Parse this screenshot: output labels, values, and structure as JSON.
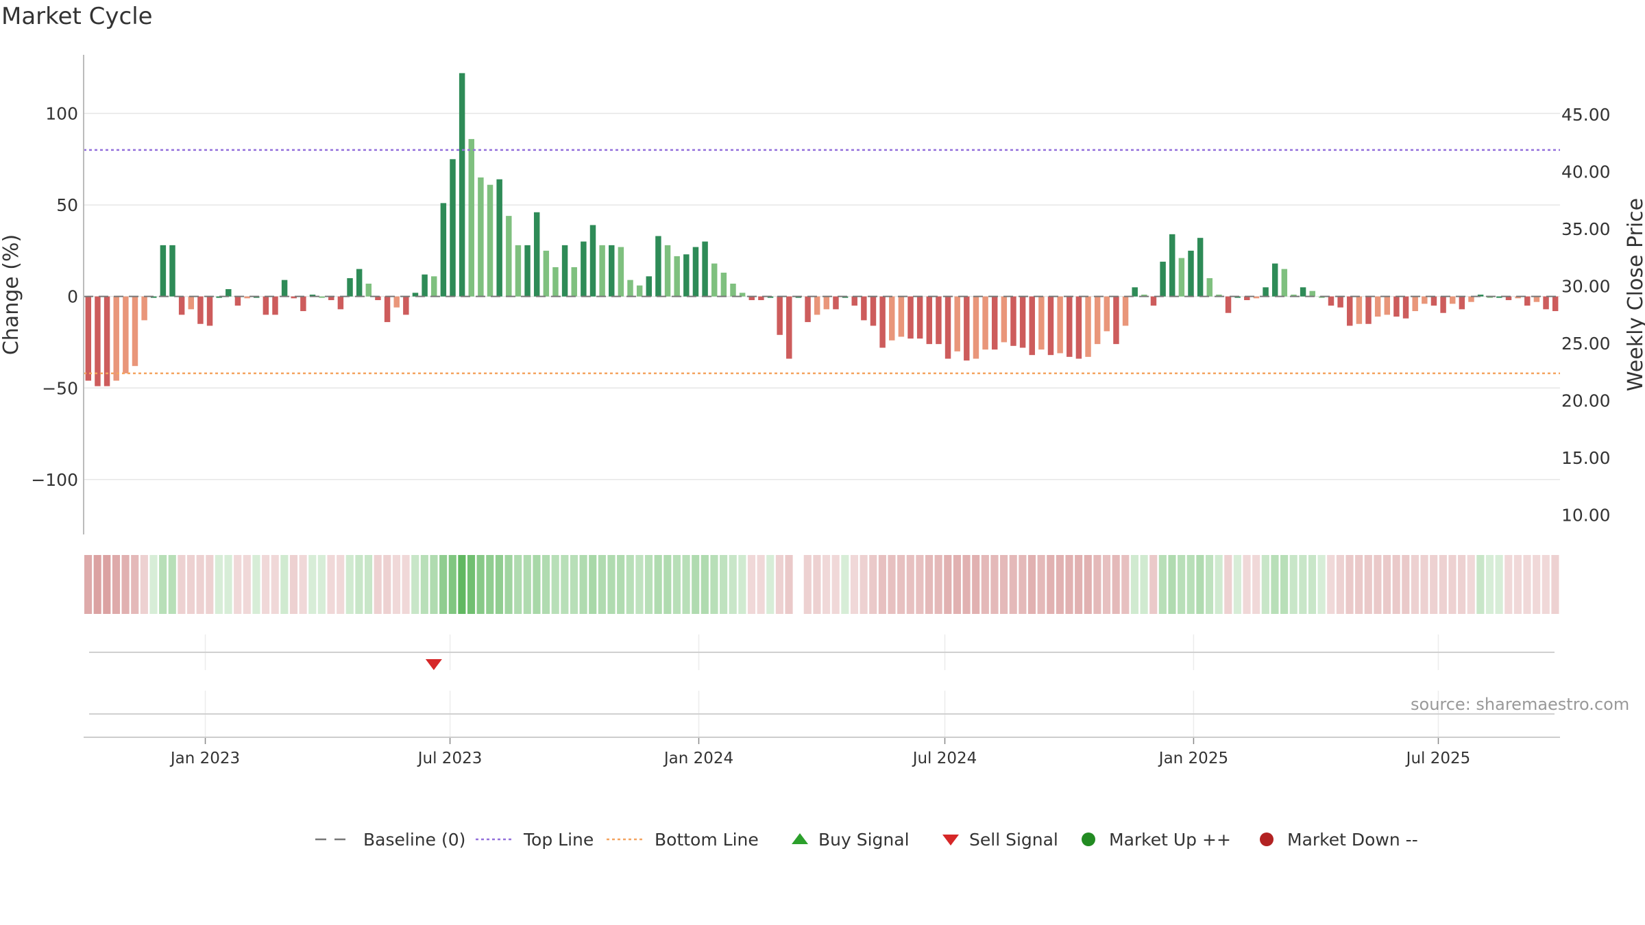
{
  "title": "Market Cycle",
  "source": "source: sharemaestro.com",
  "colors": {
    "strong_up": "#2e8b57",
    "weak_up": "#7fc07f",
    "strong_down": "#cd5c5c",
    "weak_down": "#e9967a",
    "top_line": "#9370db",
    "bottom_line": "#f4a460",
    "buy": "#2ca02c",
    "sell": "#d62728",
    "market_up": "#228b22",
    "market_down": "#b22222"
  },
  "chart_data": {
    "type": "bar",
    "title": "Market Cycle",
    "ylabel": "Change (%)",
    "ylabel_right": "Weekly Close Price",
    "ylim": [
      -130,
      132
    ],
    "y_ticks": [
      100,
      50,
      0,
      -50,
      -100
    ],
    "y_tick_labels": [
      "100",
      "50",
      "0",
      "−50",
      "−100"
    ],
    "right_ylim": [
      8.3,
      50.2
    ],
    "right_ticks": [
      45,
      40,
      35,
      30,
      25,
      20,
      15,
      10
    ],
    "right_tick_labels": [
      "45.00",
      "40.00",
      "35.00",
      "30.00",
      "25.00",
      "20.00",
      "15.00",
      "10.00"
    ],
    "x_ticks": [
      "2023-01-01",
      "2023-07-01",
      "2024-01-01",
      "2024-07-01",
      "2025-01-01",
      "2025-07-01"
    ],
    "x_tick_labels": [
      "Jan 2023",
      "Jul 2023",
      "Jan 2024",
      "Jul 2024",
      "Jan 2025",
      "Jul 2025"
    ],
    "x_range": [
      "2022-10-03",
      "2025-09-29"
    ],
    "top_line": 80,
    "bottom_line": -42,
    "baseline": 0,
    "grid": true,
    "legend_position": "bottom",
    "series": [
      {
        "values": [
          -46,
          -49,
          -49,
          -46,
          -42,
          -38,
          -13,
          0,
          28,
          28,
          -10,
          -7,
          -15,
          -16,
          0,
          4,
          -5,
          -1,
          0,
          -10,
          -10,
          9,
          -1,
          -8,
          1,
          0,
          -2,
          -7,
          10,
          15,
          7,
          -2,
          -14,
          -6,
          -10,
          2,
          12,
          11,
          51,
          75,
          122,
          86,
          65,
          61,
          64,
          44,
          28,
          28,
          46,
          25,
          16,
          28,
          16,
          30,
          39,
          28,
          28,
          27,
          9,
          6,
          11,
          33,
          28,
          22,
          23,
          27,
          30,
          18,
          13,
          7,
          2,
          -2,
          -2,
          0,
          -21,
          -34,
          0,
          -14,
          -10,
          -7,
          -7,
          0,
          -5,
          -13,
          -16,
          -28,
          -24,
          -22,
          -23,
          -23,
          -26,
          -26,
          -34,
          -30,
          -35,
          -34,
          -29,
          -29,
          -25,
          -27,
          -28,
          -32,
          -29,
          -32,
          -31,
          -33,
          -34,
          -33,
          -26,
          -19,
          -26,
          -16,
          5,
          1,
          -5,
          19,
          34,
          21,
          25,
          32,
          10,
          1,
          -9,
          0,
          -2,
          -1,
          5,
          18,
          15,
          1,
          5,
          3,
          0,
          -5,
          -6,
          -16,
          -15,
          -15,
          -11,
          -10,
          -11,
          -12,
          -8,
          -4,
          -5,
          -9,
          -4,
          -7,
          -3,
          1,
          0,
          0,
          -2,
          -1,
          -5,
          -3,
          -7,
          -8
        ],
        "shading_intensity": [
          0.55,
          0.6,
          0.6,
          0.55,
          0.5,
          0.45,
          0.3,
          0.25,
          0.45,
          0.45,
          0.3,
          0.3,
          0.3,
          0.3,
          0.25,
          0.25,
          0.25,
          0.25,
          0.25,
          0.25,
          0.25,
          0.3,
          0.3,
          0.25,
          0.25,
          0.25,
          0.25,
          0.25,
          0.3,
          0.35,
          0.35,
          0.3,
          0.3,
          0.25,
          0.25,
          0.35,
          0.45,
          0.5,
          0.7,
          0.8,
          1.0,
          0.9,
          0.75,
          0.7,
          0.7,
          0.6,
          0.5,
          0.5,
          0.55,
          0.5,
          0.45,
          0.45,
          0.45,
          0.5,
          0.55,
          0.5,
          0.5,
          0.5,
          0.45,
          0.4,
          0.45,
          0.5,
          0.5,
          0.45,
          0.45,
          0.5,
          0.5,
          0.45,
          0.4,
          0.35,
          0.3,
          0.25,
          0.25,
          0.25,
          0.3,
          0.35,
          0.0,
          0.3,
          0.3,
          0.25,
          0.25,
          0.25,
          0.25,
          0.3,
          0.35,
          0.4,
          0.4,
          0.4,
          0.4,
          0.4,
          0.45,
          0.45,
          0.5,
          0.5,
          0.5,
          0.5,
          0.45,
          0.45,
          0.45,
          0.45,
          0.45,
          0.5,
          0.45,
          0.5,
          0.5,
          0.5,
          0.5,
          0.5,
          0.45,
          0.4,
          0.45,
          0.4,
          0.3,
          0.3,
          0.35,
          0.45,
          0.5,
          0.45,
          0.45,
          0.5,
          0.4,
          0.3,
          0.3,
          0.25,
          0.25,
          0.25,
          0.35,
          0.45,
          0.45,
          0.35,
          0.35,
          0.35,
          0.25,
          0.25,
          0.3,
          0.35,
          0.35,
          0.35,
          0.35,
          0.35,
          0.35,
          0.35,
          0.3,
          0.3,
          0.3,
          0.3,
          0.3,
          0.3,
          0.25,
          0.35,
          0.25,
          0.25,
          0.25,
          0.25,
          0.25,
          0.25,
          0.25,
          0.3
        ]
      }
    ],
    "sell_signals": [
      "2023-06-19"
    ],
    "buy_signals": []
  },
  "legend": [
    {
      "label": "Baseline (0)",
      "icon": "dash-line-icon"
    },
    {
      "label": "Top Line",
      "icon": "dotted-line-purple-icon"
    },
    {
      "label": "Bottom Line",
      "icon": "dotted-line-orange-icon"
    },
    {
      "label": "Buy Signal",
      "icon": "triangle-up-icon"
    },
    {
      "label": "Sell Signal",
      "icon": "triangle-down-icon"
    },
    {
      "label": "Market Up ++",
      "icon": "dot-green-icon"
    },
    {
      "label": "Market Down --",
      "icon": "dot-red-icon"
    }
  ]
}
